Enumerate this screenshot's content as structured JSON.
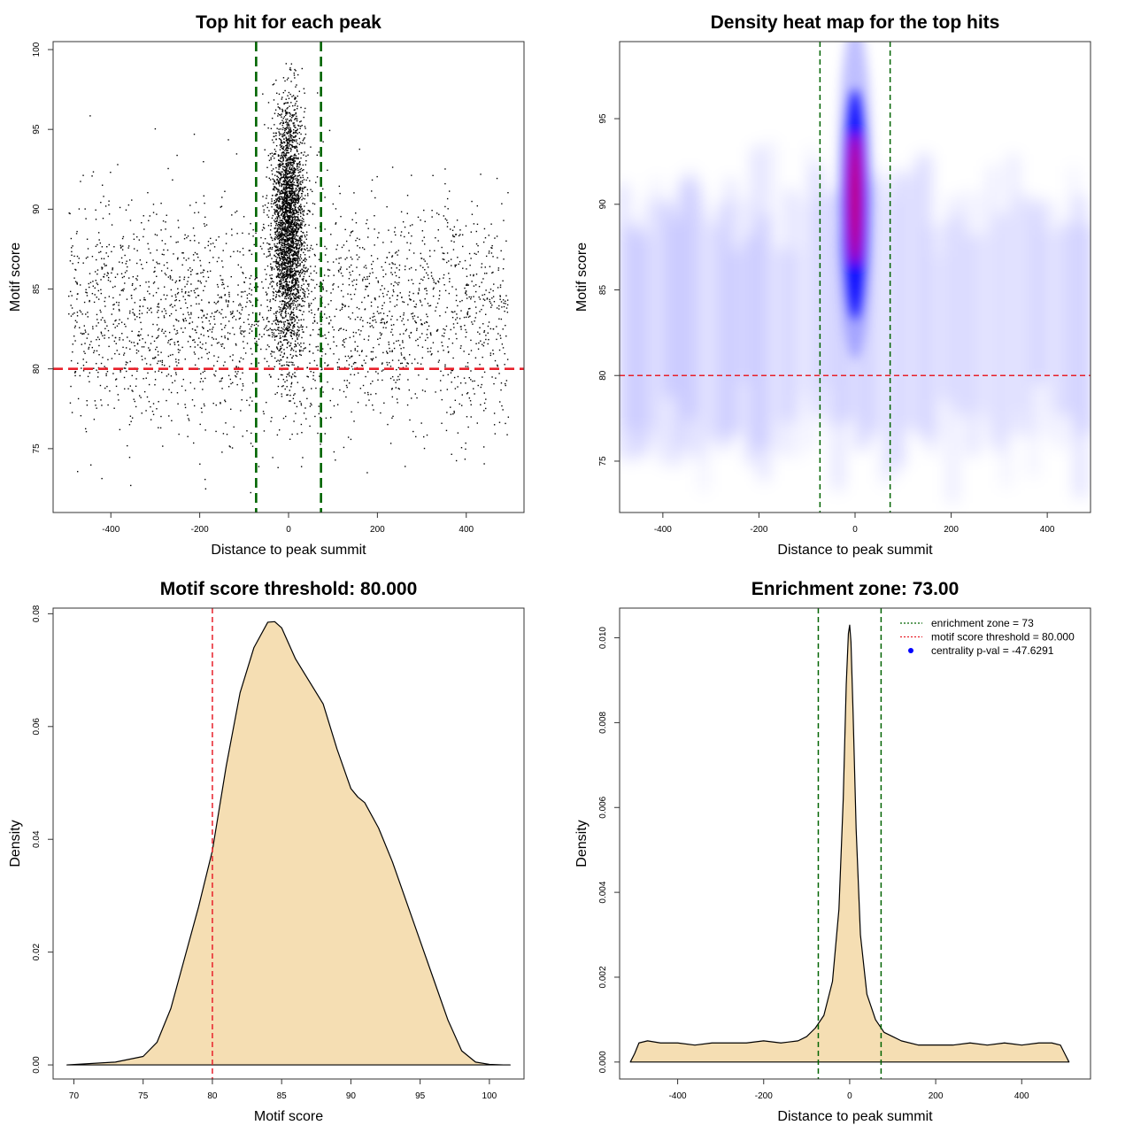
{
  "colors": {
    "scatter_point": "#000000",
    "zone_line": "#006400",
    "threshold_line": "#e8202a",
    "density_fill": "#f5deb3",
    "heat_low": "#ffffff",
    "heat_mid": "#0000ff",
    "heat_high": "#ff0000",
    "legend_point": "#0000ff"
  },
  "chart_data": [
    {
      "type": "scatter",
      "title": "Top hit for each peak",
      "xlabel": "Distance to peak summit",
      "ylabel": "Motif score",
      "xlim": [
        -530,
        530
      ],
      "ylim": [
        71,
        100.5
      ],
      "xticks": [
        -400,
        -200,
        0,
        200,
        400
      ],
      "yticks": [
        75,
        80,
        85,
        90,
        95,
        100
      ],
      "vlines": [
        -73,
        73
      ],
      "hline": 80,
      "background": {
        "x_range": [
          -495,
          495
        ],
        "y_center": 83.5,
        "y_sd": 3.6,
        "count": 2600
      },
      "central": {
        "x_center": 0,
        "x_sd": 18,
        "y_center": 89,
        "y_sd": 3.8,
        "y_range": [
          76,
          99.2
        ],
        "count": 3000
      }
    },
    {
      "type": "heatmap",
      "title": "Density heat map for the top hits",
      "xlabel": "Distance to peak summit",
      "ylabel": "Motif score",
      "xlim": [
        -490,
        490
      ],
      "ylim": [
        72,
        99.5
      ],
      "xticks": [
        -400,
        -200,
        0,
        200,
        400
      ],
      "yticks": [
        75,
        80,
        85,
        90,
        95
      ],
      "vlines": [
        -73,
        73
      ],
      "hline": 80,
      "peak": {
        "x_center": 0,
        "x_sd": 14,
        "y_center": 90,
        "y_sd": 4.5
      }
    },
    {
      "type": "area",
      "title": "Motif score threshold: 80.000",
      "xlabel": "Motif score",
      "ylabel": "Density",
      "xlim": [
        68.5,
        102.5
      ],
      "ylim": [
        -0.0025,
        0.081
      ],
      "xticks": [
        70,
        75,
        80,
        85,
        90,
        95,
        100
      ],
      "yticks": [
        0.0,
        0.02,
        0.04,
        0.06,
        0.08
      ],
      "ytick_labels": [
        "0.00",
        "0.02",
        "0.04",
        "0.06",
        "0.08"
      ],
      "vline": 80,
      "x": [
        69.5,
        73,
        75,
        76,
        77,
        78,
        79,
        80,
        81,
        82,
        83,
        84,
        84.5,
        85,
        86,
        87,
        88,
        89,
        90,
        90.5,
        91,
        92,
        93,
        94,
        95,
        96,
        97,
        98,
        99,
        100,
        101,
        101.5
      ],
      "y": [
        0.0,
        0.0005,
        0.0015,
        0.004,
        0.01,
        0.019,
        0.028,
        0.038,
        0.053,
        0.066,
        0.074,
        0.0785,
        0.0786,
        0.0775,
        0.072,
        0.068,
        0.064,
        0.056,
        0.049,
        0.0475,
        0.0465,
        0.042,
        0.036,
        0.029,
        0.022,
        0.015,
        0.008,
        0.0025,
        0.0005,
        0.0001,
        0.0,
        0.0
      ]
    },
    {
      "type": "area",
      "title": "Enrichment zone: 73.00",
      "xlabel": "Distance to peak summit",
      "ylabel": "Density",
      "xlim": [
        -535,
        560
      ],
      "ylim": [
        -0.0004,
        0.0107
      ],
      "xticks": [
        -400,
        -200,
        0,
        200,
        400
      ],
      "yticks": [
        0.0,
        0.002,
        0.004,
        0.006,
        0.008,
        0.01
      ],
      "ytick_labels": [
        "0.000",
        "0.002",
        "0.004",
        "0.006",
        "0.008",
        "0.010"
      ],
      "vlines": [
        -73,
        73
      ],
      "x": [
        -510,
        -500,
        -490,
        -470,
        -440,
        -400,
        -360,
        -320,
        -280,
        -240,
        -200,
        -160,
        -120,
        -100,
        -80,
        -60,
        -40,
        -25,
        -15,
        -8,
        -3,
        0,
        3,
        8,
        15,
        25,
        40,
        60,
        80,
        100,
        120,
        160,
        200,
        240,
        280,
        320,
        360,
        400,
        440,
        470,
        490,
        500,
        510
      ],
      "y": [
        0.0,
        0.0002,
        0.00045,
        0.0005,
        0.00045,
        0.00045,
        0.0004,
        0.00045,
        0.00045,
        0.00045,
        0.0005,
        0.00045,
        0.0005,
        0.0006,
        0.0008,
        0.0011,
        0.0019,
        0.0036,
        0.0062,
        0.0089,
        0.0101,
        0.0103,
        0.0099,
        0.0082,
        0.0055,
        0.003,
        0.0016,
        0.001,
        0.0007,
        0.0006,
        0.0005,
        0.0004,
        0.0004,
        0.0004,
        0.00045,
        0.0004,
        0.00045,
        0.0004,
        0.00045,
        0.00045,
        0.0004,
        0.0002,
        0.0
      ],
      "legend": [
        {
          "label": "enrichment zone = 73",
          "kind": "dotted-line",
          "color": "#006400"
        },
        {
          "label": "motif score threshold = 80.000",
          "kind": "dotted-line",
          "color": "#e8202a"
        },
        {
          "label": "centrality p-val = -47.6291",
          "kind": "point",
          "color": "#0000ff"
        }
      ],
      "legend_position": "top-right"
    }
  ]
}
